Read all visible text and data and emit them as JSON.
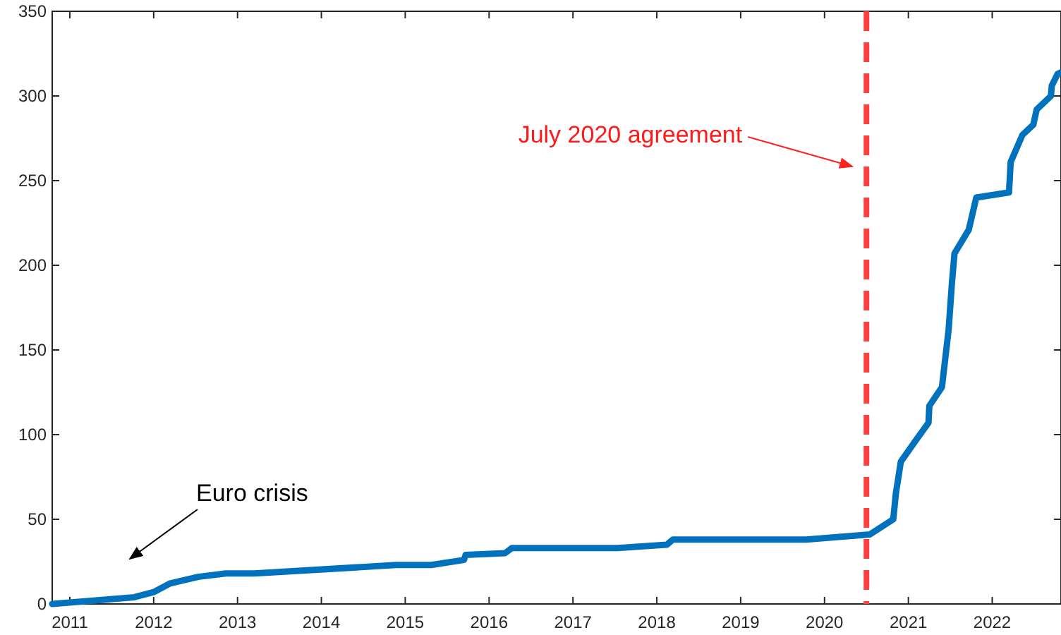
{
  "chart_data": {
    "type": "line",
    "x": [
      2010.79,
      2011.77,
      2012.0,
      2012.19,
      2012.53,
      2012.86,
      2013.2,
      2014.89,
      2015.31,
      2015.7,
      2015.72,
      2016.19,
      2016.27,
      2017.53,
      2018.12,
      2018.19,
      2019.78,
      2020.54,
      2020.82,
      2020.85,
      2020.91,
      2021.08,
      2021.24,
      2021.25,
      2021.4,
      2021.48,
      2021.52,
      2021.55,
      2021.72,
      2021.81,
      2022.2,
      2022.22,
      2022.36,
      2022.49,
      2022.53,
      2022.7,
      2022.71,
      2022.78,
      2022.82
    ],
    "series": [
      {
        "color": "#0072bd",
        "values": [
          0,
          4,
          7,
          12,
          16,
          18,
          18,
          23,
          23,
          26,
          29,
          30,
          33,
          33,
          35,
          38,
          38,
          41,
          50,
          65,
          84,
          96,
          107,
          117,
          128,
          162,
          190,
          207,
          221,
          240,
          243,
          261,
          277,
          283,
          292,
          300,
          306,
          313,
          314
        ]
      }
    ],
    "xlim": [
      2010.79,
      2022.82
    ],
    "xticks": [
      2011,
      2012,
      2013,
      2014,
      2015,
      2016,
      2017,
      2018,
      2019,
      2020,
      2021,
      2022
    ],
    "ylim": [
      0,
      350
    ],
    "yticks": [
      0,
      50,
      100,
      150,
      200,
      250,
      300,
      350
    ],
    "grid": false,
    "marker": "none",
    "line_style": "solid",
    "ref_lines": [
      {
        "axis": "x",
        "value": 2020.5,
        "label": "July 2020 agreement",
        "color": "#ff4040",
        "line_style": "dashed"
      }
    ],
    "annotations": [
      "Euro crisis"
    ]
  }
}
